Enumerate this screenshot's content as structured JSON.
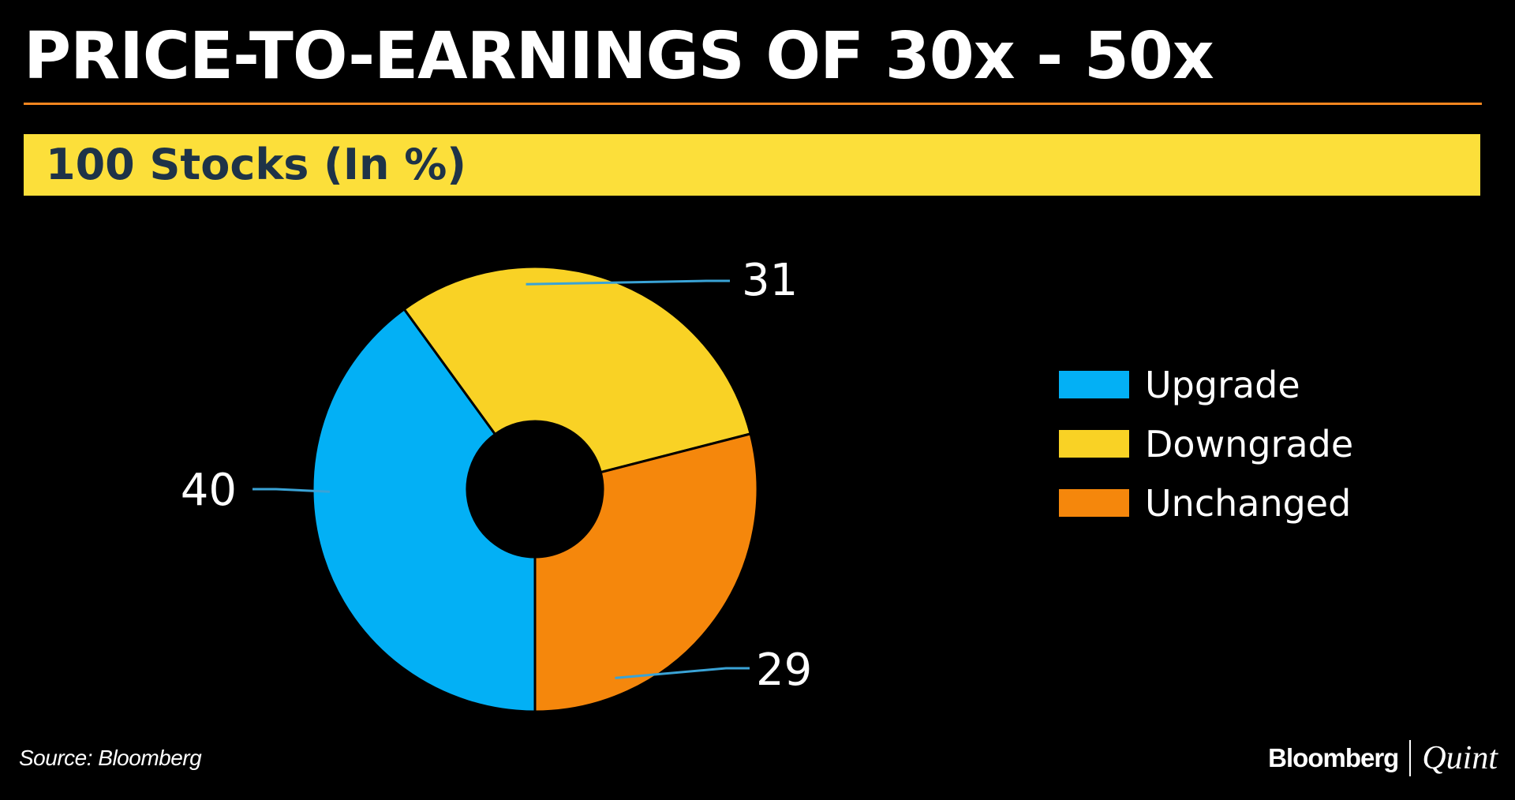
{
  "title": "PRICE-TO-EARNINGS OF 30x - 50x",
  "subtitle": "100 Stocks (In %)",
  "source": "Source: Bloomberg",
  "brand": {
    "primary": "Bloomberg",
    "secondary": "Quint"
  },
  "colors": {
    "background": "#000000",
    "title_rule": "#F5861F",
    "subtitle_bar": "#FCDF3A",
    "subtitle_text": "#1E3348",
    "leader_line": "#3AA3D6"
  },
  "chart_data": {
    "type": "pie",
    "style": "donut",
    "categories": [
      "Upgrade",
      "Downgrade",
      "Unchanged"
    ],
    "values": [
      40,
      31,
      29
    ],
    "data_labels": [
      "40",
      "31",
      "29"
    ],
    "colors": [
      "#03B0F5",
      "#F9D225",
      "#F5870C"
    ],
    "legend": {
      "placement": "right",
      "entries": [
        "Upgrade",
        "Downgrade",
        "Unchanged"
      ]
    }
  }
}
